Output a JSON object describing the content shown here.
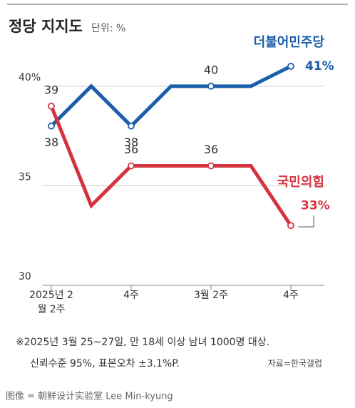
{
  "chart_data": {
    "type": "line",
    "title": "정당 지지도",
    "subtitle": "단위: %",
    "categories": [
      "2025년 2월 2주",
      null,
      "4주",
      null,
      "3월 2주",
      null,
      "4주"
    ],
    "series": [
      {
        "name": "더불어민주당",
        "color": "#1b5dab",
        "values": [
          38,
          40,
          38,
          40,
          40,
          40,
          41
        ],
        "value_labels": [
          "38",
          null,
          "38",
          null,
          "40",
          null,
          "41%"
        ]
      },
      {
        "name": "국민의힘",
        "color": "#d4333f",
        "values": [
          39,
          34,
          36,
          36,
          36,
          36,
          33
        ],
        "value_labels": [
          "39",
          null,
          "36",
          null,
          "36",
          null,
          "33%"
        ]
      }
    ],
    "ylim": [
      30,
      42
    ],
    "yticks": [
      30,
      35,
      {
        "value": 40,
        "label": "40%"
      }
    ],
    "grid": true,
    "notes": [
      "※2025년 3월 25~27일, 만 18세 이상 남녀 1000명 대상.",
      "신뢰수준 95%, 표본오차 ±3.1%P."
    ],
    "source": "자료=한국갤럽"
  },
  "caption": "图像 = 朝鲜设计实验室 Lee Min-kyung"
}
